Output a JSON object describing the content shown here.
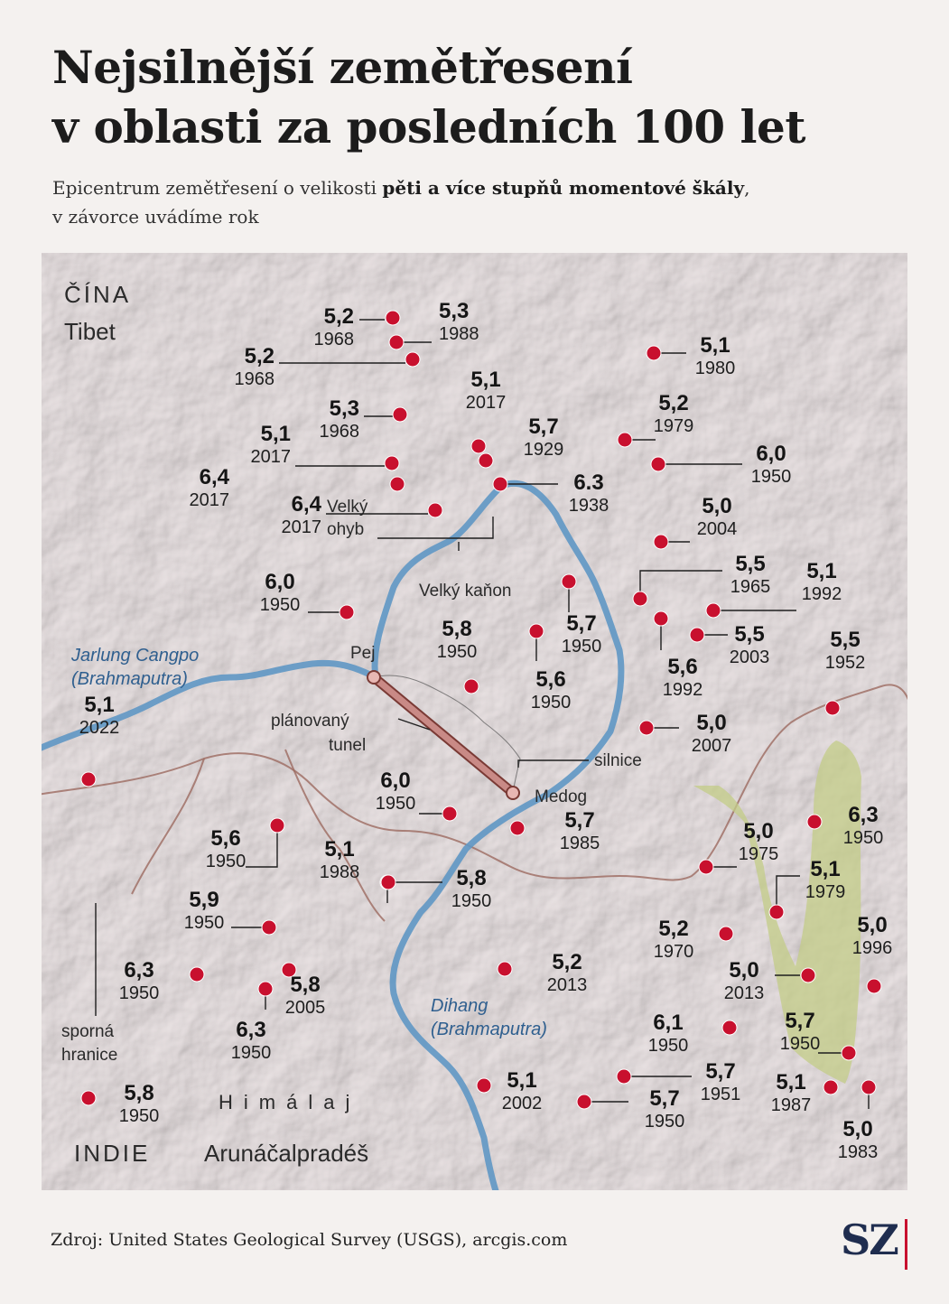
{
  "title_line1": "Nejsilnější zemětřesení",
  "title_line2": "v oblasti za posledních 100 let",
  "subtitle": {
    "part1": "Epicentrum zemětřesení o velikosti ",
    "bold": "pěti a více stupňů momentové škály",
    "part2": ",",
    "line2": "v závorce uvádíme rok"
  },
  "labels": {
    "cina": "ČÍNA",
    "tibet": "Tibet",
    "indie": "INDIE",
    "arunacal": "Arunáčalpradéš",
    "himalaj": "Himálaj",
    "jarlung1": "Jarlung Cangpo",
    "jarlung2": "(Brahmaputra)",
    "dihang1": "Dihang",
    "dihang2": "(Brahmaputra)",
    "velky_ohyb1": "Velký",
    "velky_ohyb2": "ohyb",
    "velky_kanon": "Velký kaňon",
    "pej": "Pej",
    "medog": "Medog",
    "tunel1": "plánovaný",
    "tunel2": "tunel",
    "silnice": "silnice",
    "sporna1": "sporná",
    "sporna2": "hranice"
  },
  "colors": {
    "quake": "#c8102e",
    "river": "#5f97c4",
    "tunnel": "#c98a86",
    "border": "#9c6a60",
    "green_zone": "#c3cc87",
    "logo": "#1f2d4f"
  },
  "earthquakes": [
    {
      "magnitude": "5,2",
      "year": "1968"
    },
    {
      "magnitude": "5,3",
      "year": "1988"
    },
    {
      "magnitude": "5,2",
      "year": "1968"
    },
    {
      "magnitude": "5,3",
      "year": "1968"
    },
    {
      "magnitude": "5,1",
      "year": "2017"
    },
    {
      "magnitude": "5,1",
      "year": "2017"
    },
    {
      "magnitude": "6,4",
      "year": "2017"
    },
    {
      "magnitude": "6,4",
      "year": "2017"
    },
    {
      "magnitude": "5,7",
      "year": "1929"
    },
    {
      "magnitude": "6.3",
      "year": "1938"
    },
    {
      "magnitude": "5,1",
      "year": "1980"
    },
    {
      "magnitude": "5,2",
      "year": "1979"
    },
    {
      "magnitude": "6,0",
      "year": "1950"
    },
    {
      "magnitude": "5,0",
      "year": "2004"
    },
    {
      "magnitude": "5,5",
      "year": "1965"
    },
    {
      "magnitude": "5,1",
      "year": "1992"
    },
    {
      "magnitude": "5,5",
      "year": "2003"
    },
    {
      "magnitude": "5,6",
      "year": "1992"
    },
    {
      "magnitude": "5,5",
      "year": "1952"
    },
    {
      "magnitude": "5,0",
      "year": "2007"
    },
    {
      "magnitude": "6,0",
      "year": "1950"
    },
    {
      "magnitude": "5,8",
      "year": "1950"
    },
    {
      "magnitude": "5,7",
      "year": "1950"
    },
    {
      "magnitude": "5,6",
      "year": "1950"
    },
    {
      "magnitude": "5,1",
      "year": "2022"
    },
    {
      "magnitude": "6,0",
      "year": "1950"
    },
    {
      "magnitude": "5,7",
      "year": "1985"
    },
    {
      "magnitude": "5,6",
      "year": "1950"
    },
    {
      "magnitude": "5,1",
      "year": "1988"
    },
    {
      "magnitude": "5,8",
      "year": "1950"
    },
    {
      "magnitude": "5,9",
      "year": "1950"
    },
    {
      "magnitude": "6,3",
      "year": "1950"
    },
    {
      "magnitude": "5,8",
      "year": "2005"
    },
    {
      "magnitude": "6,3",
      "year": "1950"
    },
    {
      "magnitude": "5,2",
      "year": "2013"
    },
    {
      "magnitude": "5,8",
      "year": "1950"
    },
    {
      "magnitude": "5,1",
      "year": "2002"
    },
    {
      "magnitude": "5,7",
      "year": "1951"
    },
    {
      "magnitude": "5,7",
      "year": "1950"
    },
    {
      "magnitude": "5,0",
      "year": "1975"
    },
    {
      "magnitude": "6,3",
      "year": "1950"
    },
    {
      "magnitude": "5,1",
      "year": "1979"
    },
    {
      "magnitude": "5,2",
      "year": "1970"
    },
    {
      "magnitude": "5,0",
      "year": "2013"
    },
    {
      "magnitude": "5,0",
      "year": "1996"
    },
    {
      "magnitude": "6,1",
      "year": "1950"
    },
    {
      "magnitude": "5,7",
      "year": "1950"
    },
    {
      "magnitude": "5,1",
      "year": "1987"
    },
    {
      "magnitude": "5,0",
      "year": "1983"
    }
  ],
  "source": "Zdroj: United States Geological Survey (USGS), arcgis.com",
  "logo": "SZ"
}
